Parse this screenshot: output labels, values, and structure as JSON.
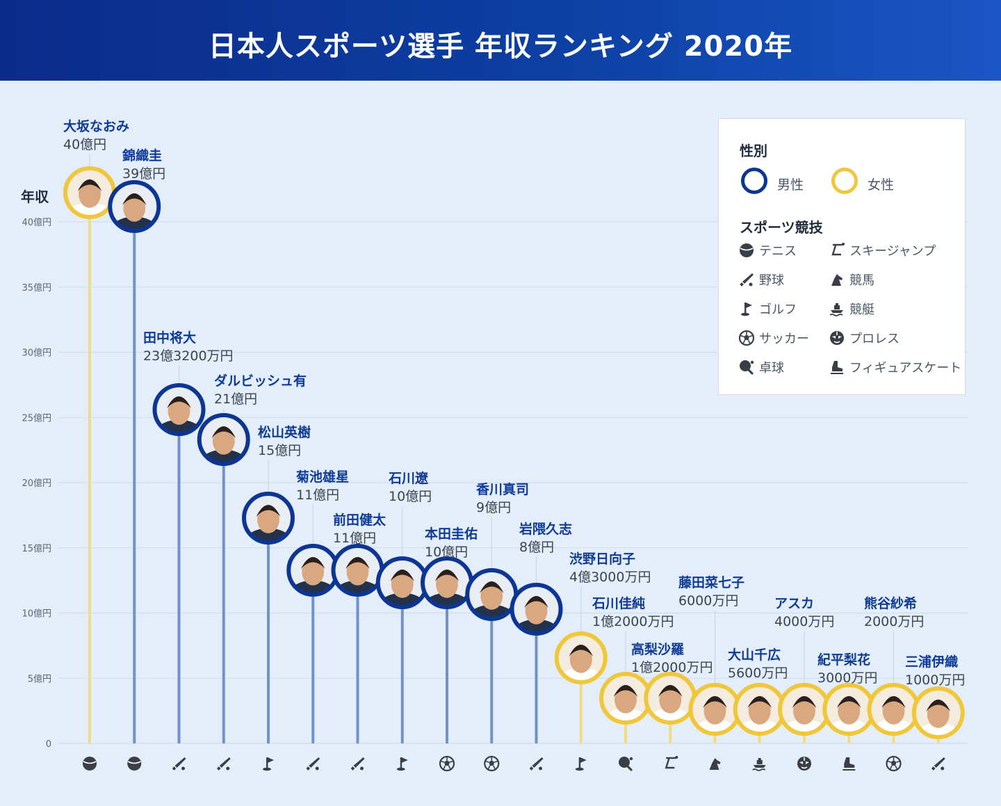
{
  "title": "日本人スポーツ選手 年収ランキング 2020年",
  "legend": {
    "gender_title": "性別",
    "male": "男性",
    "female": "女性",
    "sports_title": "スポーツ競技",
    "sports": [
      {
        "key": "tennis",
        "label": "テニス",
        "icon": "tennis-ball-icon"
      },
      {
        "key": "ski",
        "label": "スキージャンプ",
        "icon": "ski-jump-icon"
      },
      {
        "key": "baseball",
        "label": "野球",
        "icon": "baseball-bat-icon"
      },
      {
        "key": "horse",
        "label": "競馬",
        "icon": "horse-icon"
      },
      {
        "key": "golf",
        "label": "ゴルフ",
        "icon": "golf-flag-icon"
      },
      {
        "key": "boat",
        "label": "競艇",
        "icon": "boat-icon"
      },
      {
        "key": "soccer",
        "label": "サッカー",
        "icon": "soccer-ball-icon"
      },
      {
        "key": "wrestling",
        "label": "プロレス",
        "icon": "wrestling-mask-icon"
      },
      {
        "key": "pingpong",
        "label": "卓球",
        "icon": "ping-pong-paddle-icon"
      },
      {
        "key": "skate",
        "label": "フィギュアスケート",
        "icon": "skate-boot-icon"
      }
    ]
  },
  "colors": {
    "male": "#0d3593",
    "female": "#f0c63a",
    "male_line": "#6f93c9",
    "female_line": "#f1dc86",
    "label": "#0f3a95",
    "grid": "#cfdbea"
  },
  "chart_data": {
    "type": "bar",
    "ylabel": "年収",
    "yunit": "億円",
    "ylim": [
      0,
      40
    ],
    "yticks": [
      {
        "value": 0,
        "label": "0"
      },
      {
        "value": 5,
        "label": "5億円"
      },
      {
        "value": 10,
        "label": "10億円"
      },
      {
        "value": 15,
        "label": "15億円"
      },
      {
        "value": 20,
        "label": "20億円"
      },
      {
        "value": 25,
        "label": "25億円"
      },
      {
        "value": 30,
        "label": "30億円"
      },
      {
        "value": 35,
        "label": "35億円"
      },
      {
        "value": 40,
        "label": "40億円"
      }
    ],
    "grid": true,
    "legend_position": "top-right",
    "athletes": [
      {
        "name": "大坂なおみ",
        "income_label": "40億円",
        "gender": "female",
        "sport": "tennis"
      },
      {
        "name": "錦織圭",
        "income_label": "39億円",
        "gender": "male",
        "sport": "tennis"
      },
      {
        "name": "田中将大",
        "income_label": "23億3200万円",
        "gender": "male",
        "sport": "baseball"
      },
      {
        "name": "ダルビッシュ有",
        "income_label": "21億円",
        "gender": "male",
        "sport": "baseball"
      },
      {
        "name": "松山英樹",
        "income_label": "15億円",
        "gender": "male",
        "sport": "golf"
      },
      {
        "name": "菊池雄星",
        "income_label": "11億円",
        "gender": "male",
        "sport": "baseball"
      },
      {
        "name": "前田健太",
        "income_label": "11億円",
        "gender": "male",
        "sport": "baseball"
      },
      {
        "name": "石川遼",
        "income_label": "10億円",
        "gender": "male",
        "sport": "golf"
      },
      {
        "name": "本田圭佑",
        "income_label": "10億円",
        "gender": "male",
        "sport": "soccer"
      },
      {
        "name": "香川真司",
        "income_label": "9億円",
        "gender": "male",
        "sport": "soccer"
      },
      {
        "name": "岩隈久志",
        "income_label": "8億円",
        "gender": "male",
        "sport": "baseball"
      },
      {
        "name": "渋野日向子",
        "income_label": "4億3000万円",
        "gender": "female",
        "sport": "golf"
      },
      {
        "name": "石川佳純",
        "income_label": "1億2000万円",
        "gender": "female",
        "sport": "pingpong"
      },
      {
        "name": "高梨沙羅",
        "income_label": "1億2000万円",
        "gender": "female",
        "sport": "ski"
      },
      {
        "name": "藤田菜七子",
        "income_label": "6000万円",
        "gender": "female",
        "sport": "horse"
      },
      {
        "name": "大山千広",
        "income_label": "5600万円",
        "gender": "female",
        "sport": "boat"
      },
      {
        "name": "アスカ",
        "income_label": "4000万円",
        "gender": "female",
        "sport": "wrestling"
      },
      {
        "name": "紀平梨花",
        "income_label": "3000万円",
        "gender": "female",
        "sport": "skate"
      },
      {
        "name": "熊谷紗希",
        "income_label": "2000万円",
        "gender": "female",
        "sport": "soccer"
      },
      {
        "name": "三浦伊織",
        "income_label": "1000万円",
        "gender": "female",
        "sport": "baseball"
      }
    ]
  }
}
